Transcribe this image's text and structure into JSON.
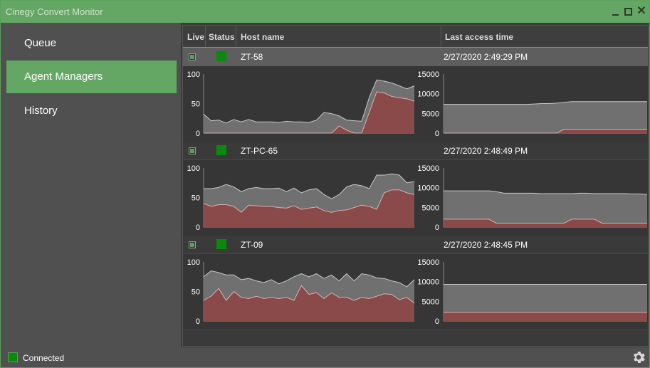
{
  "window": {
    "title": "Cinegy Convert Monitor"
  },
  "sidebar": {
    "items": [
      {
        "label": "Queue",
        "active": false
      },
      {
        "label": "Agent Managers",
        "active": true
      },
      {
        "label": "History",
        "active": false
      }
    ]
  },
  "table": {
    "headers": {
      "live": "Live",
      "status": "Status",
      "host": "Host name",
      "time": "Last access time"
    },
    "rows": [
      {
        "host": "ZT-58",
        "time": "2/27/2020 2:49:29 PM",
        "live": true,
        "status_color": "#0a8a0a"
      },
      {
        "host": "ZT-PC-65",
        "time": "2/27/2020 2:48:49 PM",
        "live": true,
        "status_color": "#0a8a0a"
      },
      {
        "host": "ZT-09",
        "time": "2/27/2020 2:48:45 PM",
        "live": true,
        "status_color": "#0a8a0a"
      }
    ]
  },
  "chart_data": [
    {
      "type": "area",
      "ylim": [
        0,
        100
      ],
      "yticks": [
        "100",
        "50",
        "0"
      ],
      "series": [
        {
          "values": [
            32,
            21,
            22,
            17,
            23,
            19,
            23,
            19,
            19,
            19,
            18,
            20,
            19,
            19,
            18,
            22,
            35,
            33,
            29,
            22,
            21,
            20,
            60,
            90,
            88,
            85,
            80,
            75,
            80
          ]
        },
        {
          "values": [
            0,
            0,
            0,
            0,
            0,
            0,
            0,
            0,
            0,
            0,
            0,
            0,
            0,
            0,
            0,
            0,
            0,
            0,
            12,
            5,
            0,
            0,
            35,
            70,
            68,
            62,
            60,
            58,
            54
          ]
        }
      ]
    },
    {
      "type": "area",
      "ylim": [
        0,
        15000
      ],
      "yticks": [
        "15000",
        "10000",
        "5000",
        "0"
      ],
      "series": [
        {
          "values": [
            7300,
            7300,
            7300,
            7300,
            7300,
            7300,
            7300,
            7300,
            7300,
            7300,
            7300,
            7300,
            7400,
            7500,
            7500,
            7600,
            7800,
            8000,
            8000,
            8000,
            8000,
            8000,
            8000,
            8000,
            8000,
            8000,
            8000,
            8000
          ]
        },
        {
          "values": [
            0,
            0,
            0,
            0,
            0,
            0,
            0,
            0,
            0,
            0,
            0,
            0,
            0,
            0,
            0,
            0,
            1000,
            1000,
            1000,
            1000,
            1000,
            1000,
            1000,
            1000,
            1000,
            1000,
            1000,
            1000
          ]
        }
      ]
    },
    {
      "type": "area",
      "ylim": [
        0,
        100
      ],
      "yticks": [
        "100",
        "50",
        "0"
      ],
      "series": [
        {
          "values": [
            65,
            65,
            67,
            72,
            68,
            60,
            65,
            67,
            65,
            65,
            66,
            60,
            66,
            58,
            63,
            65,
            55,
            48,
            55,
            68,
            72,
            70,
            65,
            88,
            88,
            90,
            88,
            75,
            77
          ]
        },
        {
          "values": [
            40,
            35,
            38,
            38,
            35,
            25,
            37,
            36,
            35,
            35,
            33,
            32,
            36,
            30,
            32,
            34,
            28,
            25,
            28,
            29,
            33,
            37,
            35,
            30,
            58,
            63,
            63,
            58,
            55
          ]
        }
      ]
    },
    {
      "type": "area",
      "ylim": [
        0,
        15000
      ],
      "yticks": [
        "15000",
        "10000",
        "5000",
        "0"
      ],
      "series": [
        {
          "values": [
            9200,
            9200,
            9200,
            9200,
            9200,
            9200,
            9200,
            9000,
            8600,
            8600,
            8600,
            8600,
            8600,
            8500,
            8500,
            8500,
            8500,
            8500,
            8600,
            8600,
            8500,
            8500,
            8500,
            8500,
            8500,
            8400,
            8400,
            8300
          ]
        },
        {
          "values": [
            2000,
            2000,
            2000,
            2000,
            2000,
            2000,
            2000,
            1000,
            1000,
            1000,
            1000,
            1000,
            1000,
            1000,
            1000,
            1000,
            1000,
            2000,
            2000,
            2000,
            2000,
            1000,
            1000,
            1000,
            1000,
            1000,
            1000,
            1000
          ]
        }
      ]
    },
    {
      "type": "area",
      "ylim": [
        0,
        100
      ],
      "yticks": [
        "100",
        "50",
        "0"
      ],
      "series": [
        {
          "values": [
            75,
            85,
            82,
            78,
            78,
            70,
            72,
            68,
            65,
            70,
            63,
            68,
            75,
            80,
            75,
            80,
            72,
            78,
            68,
            80,
            68,
            80,
            78,
            73,
            72,
            68,
            65,
            58,
            70
          ]
        },
        {
          "values": [
            35,
            42,
            55,
            35,
            50,
            40,
            38,
            42,
            38,
            40,
            38,
            40,
            35,
            60,
            45,
            48,
            38,
            48,
            40,
            40,
            35,
            40,
            38,
            42,
            46,
            45,
            36,
            40,
            30
          ]
        }
      ]
    },
    {
      "type": "area",
      "ylim": [
        0,
        15000
      ],
      "yticks": [
        "15000",
        "10000",
        "5000",
        "0"
      ],
      "series": [
        {
          "values": [
            9300,
            9300,
            9300,
            9300,
            9300,
            9300,
            9300,
            9300,
            9300,
            9300,
            9300,
            9300,
            9300,
            9300,
            9300,
            9300,
            9300,
            9300,
            9300,
            9300,
            9300,
            9300,
            9300,
            9300,
            9300,
            9300,
            9300,
            9300
          ]
        },
        {
          "values": [
            2200,
            2200,
            2200,
            2200,
            2200,
            2200,
            2200,
            2200,
            2200,
            2200,
            2200,
            2200,
            2200,
            2200,
            2200,
            2200,
            2200,
            2200,
            2200,
            2200,
            2200,
            2200,
            2200,
            2200,
            2200,
            2200,
            2200,
            2200
          ]
        }
      ]
    }
  ],
  "colors": {
    "accent": "#64a764",
    "status_green": "#0a8a0a",
    "area_total": "#707070",
    "area_used": "#8a4a4a"
  },
  "statusbar": {
    "connection": "Connected",
    "settings_icon": "gear-icon"
  }
}
